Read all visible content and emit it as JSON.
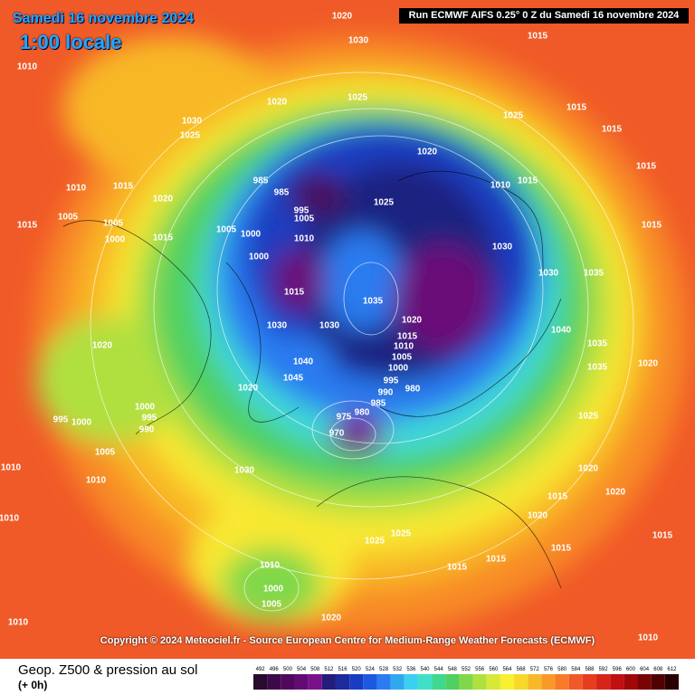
{
  "header": {
    "date": "Samedi 16 novembre 2024",
    "time": "1:00 locale",
    "run": "Run ECMWF AIFS 0.25° 0 Z du Samedi 16 novembre 2024"
  },
  "copyright": "Copyright © 2024 Meteociel.fr - Source European Centre for Medium-Range Weather Forecasts (ECMWF)",
  "footer": {
    "title": "Geop. Z500 & pression au sol",
    "lead": "(+ 0h)"
  },
  "isobar_labels": [
    1020,
    1030,
    1015,
    1010,
    1020,
    1025,
    1015,
    1030,
    1025,
    1025,
    1015,
    1020,
    985,
    985,
    995,
    1005,
    1025,
    1010,
    1015,
    1015,
    1010,
    1015,
    1020,
    1005,
    1005,
    1015,
    1005,
    1000,
    1010,
    1030,
    1015,
    1000,
    1015,
    1000,
    1015,
    1035,
    1030,
    1035,
    1020,
    1030,
    1030,
    1015,
    1010,
    1005,
    1000,
    995,
    990,
    980,
    985,
    980,
    975,
    970,
    1040,
    1045,
    1020,
    1020,
    1000,
    995,
    990,
    1000,
    995,
    1005,
    1010,
    1030,
    1010,
    1010,
    1025,
    1025,
    1015,
    1015,
    1015,
    1020,
    1015,
    1010,
    1000,
    1005,
    1020,
    1010,
    1010,
    1015,
    1020,
    1020,
    1025,
    1035,
    1040,
    1020,
    1035
  ],
  "colorbar": {
    "values": [
      492,
      496,
      500,
      504,
      508,
      512,
      516,
      520,
      524,
      528,
      532,
      536,
      540,
      544,
      548,
      552,
      556,
      560,
      564,
      568,
      572,
      576,
      580,
      584,
      588,
      592,
      596,
      600,
      604,
      608,
      612
    ],
    "colors": [
      "#2a0a2e",
      "#3c0a48",
      "#50085e",
      "#640a74",
      "#7a108a",
      "#241c7a",
      "#1c2a9a",
      "#1a3cc0",
      "#1e5ae0",
      "#2a7cf0",
      "#30a8f0",
      "#3cd0f0",
      "#40e0c8",
      "#40d890",
      "#50d060",
      "#80d848",
      "#b0e040",
      "#d8e838",
      "#f8f030",
      "#f8d828",
      "#f8b828",
      "#f89a28",
      "#f87a28",
      "#f05a28",
      "#e83c20",
      "#d82418",
      "#c01010",
      "#a00808",
      "#780404",
      "#500202",
      "#280000"
    ]
  }
}
